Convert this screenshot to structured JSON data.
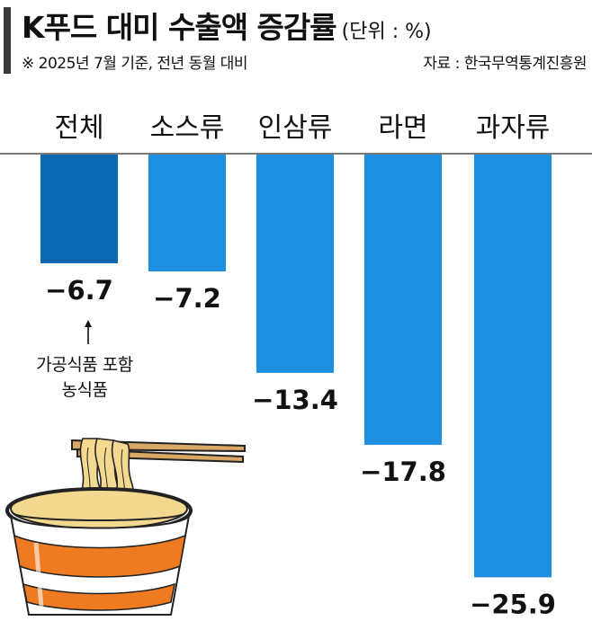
{
  "header": {
    "title": "K푸드 대미 수출액 증감률",
    "unit": "(단위 : %)",
    "subtitle": "※ 2025년 7월 기준, 전년 동월 대비",
    "source": "자료 : 한국무역통계진흥원"
  },
  "chart_data": {
    "type": "bar",
    "orientation": "vertical-negative",
    "categories": [
      "전체",
      "소스류",
      "인삼류",
      "라면",
      "과자류"
    ],
    "values": [
      -6.7,
      -7.2,
      -13.4,
      -17.8,
      -25.9
    ],
    "value_labels": [
      "−6.7",
      "−7.2",
      "−13.4",
      "−17.8",
      "−25.9"
    ],
    "ylim": [
      -26,
      0
    ],
    "grid": false,
    "legend": "none",
    "colors": [
      "#0a67b2",
      "#1e8fdf",
      "#1e8fdf",
      "#1e8fdf",
      "#1e8fdf"
    ]
  },
  "annotation": {
    "line1": "가공식품 포함",
    "line2": "농식품"
  },
  "icons": {
    "arrow": "up-arrow-icon",
    "illustration": "cup-noodle-icon"
  }
}
